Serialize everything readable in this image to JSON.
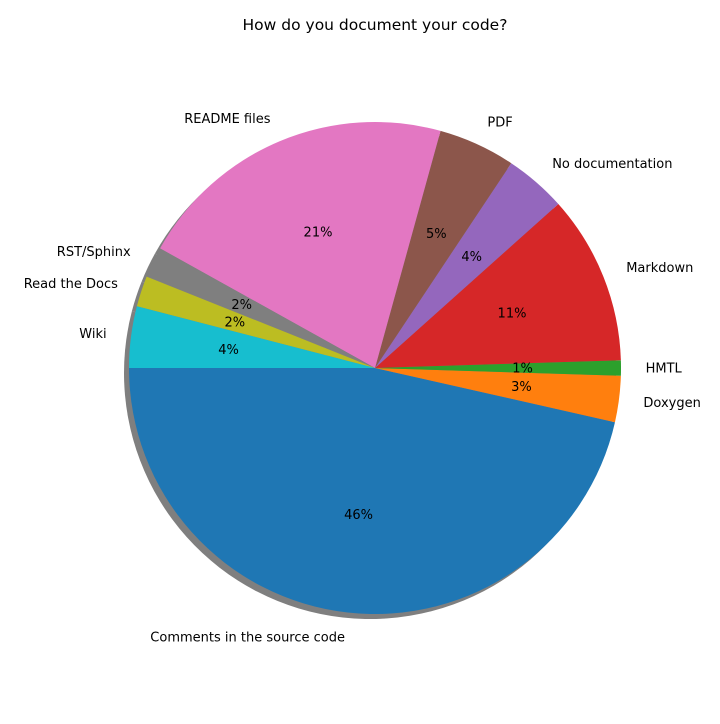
{
  "chart_data": {
    "type": "pie",
    "title": "How do you document your code?",
    "start_angle_deg": 180,
    "direction": "counterclockwise",
    "shadow": true,
    "labels": [
      "Comments in the source code",
      "Doxygen",
      "HMTL",
      "Markdown",
      "No documentation",
      "PDF",
      "README files",
      "RST/Sphinx",
      "Read the Docs",
      "Wiki"
    ],
    "values": [
      46,
      3,
      1,
      11,
      4,
      5,
      21,
      2,
      2,
      4
    ],
    "value_labels": [
      "46%",
      "3%",
      "1%",
      "11%",
      "4%",
      "5%",
      "21%",
      "2%",
      "2%",
      "4%"
    ],
    "colors": [
      "#1f77b4",
      "#ff7f0e",
      "#2ca02c",
      "#d62728",
      "#9467bd",
      "#8c564b",
      "#e377c2",
      "#7f7f7f",
      "#bcbd22",
      "#17becf"
    ]
  }
}
